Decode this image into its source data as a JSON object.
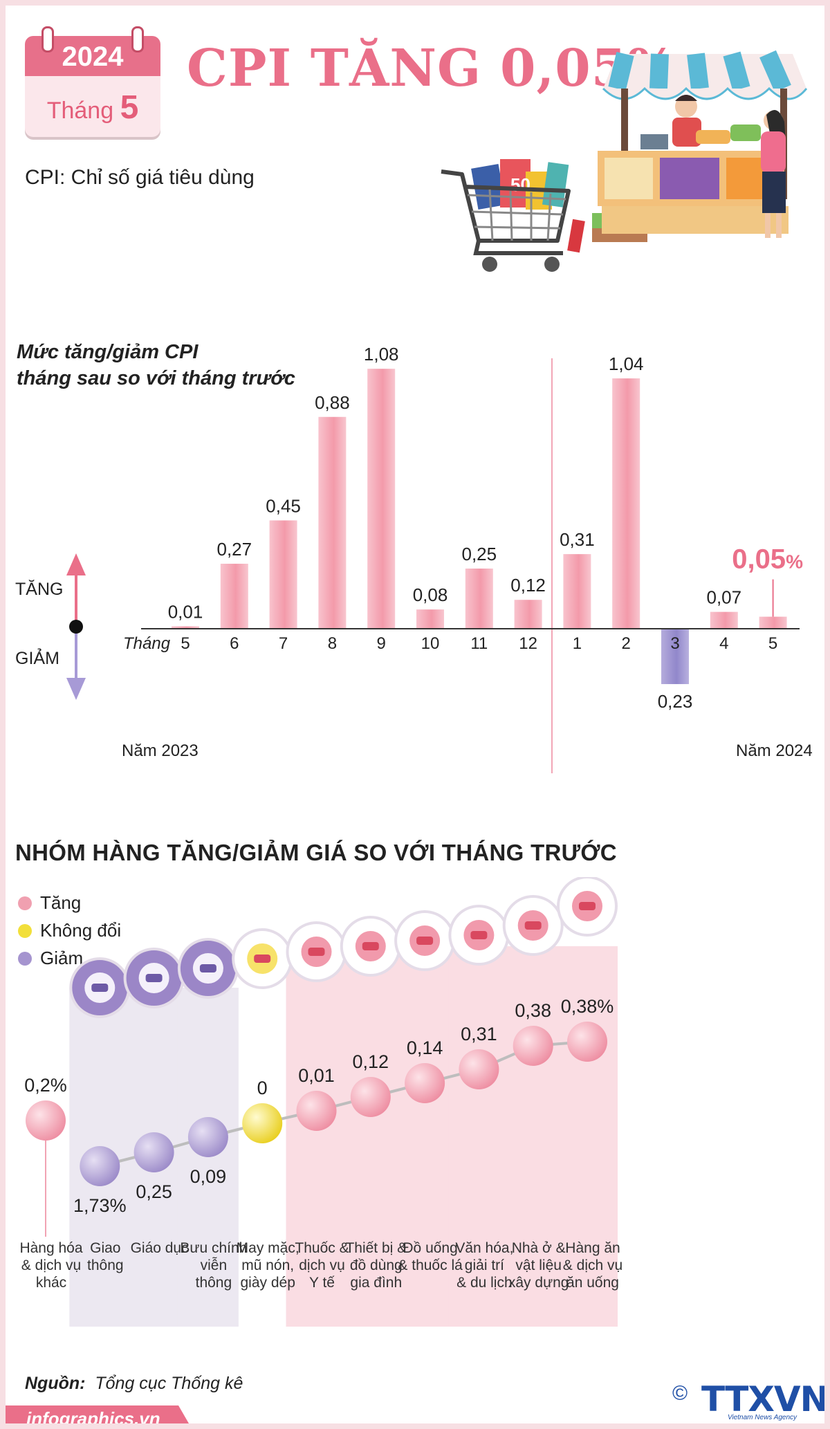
{
  "header": {
    "calendar_year": "2024",
    "calendar_month_word": "Tháng",
    "calendar_month_num": "5",
    "title": "CPI TĂNG 0,05%",
    "subtitle": "CPI: Chỉ số giá tiêu dùng"
  },
  "colors": {
    "pink": "#ea6f89",
    "bar_pink": "#f4a8b8",
    "bar_purple": "#a79ad6",
    "yellow": "#f2df3a",
    "purple_col": "#ece8f1",
    "pink_col": "#fadde3"
  },
  "chart_data": {
    "type": "bar",
    "title_line1": "Mức tăng/giảm CPI",
    "title_line2": "tháng sau so với tháng trước",
    "xlabel": "Tháng",
    "categories": [
      "5",
      "6",
      "7",
      "8",
      "9",
      "10",
      "11",
      "12",
      "1",
      "2",
      "3",
      "4",
      "5"
    ],
    "values": [
      0.01,
      0.27,
      0.45,
      0.88,
      1.08,
      0.08,
      0.25,
      0.12,
      0.31,
      1.04,
      -0.23,
      0.07,
      0.05
    ],
    "value_labels": [
      "0,01",
      "0,27",
      "0,45",
      "0,88",
      "1,08",
      "0,08",
      "0,25",
      "0,12",
      "0,31",
      "1,04",
      "0,23",
      "0,07",
      "0,05"
    ],
    "highlight_label": "0,05",
    "highlight_unit": "%",
    "years": [
      "Năm 2023",
      "Năm 2024"
    ],
    "up_label": "TĂNG",
    "down_label": "GIẢM"
  },
  "groups": {
    "title": "NHÓM HÀNG TĂNG/GIẢM GIÁ SO VỚI THÁNG TRƯỚC",
    "legend": [
      {
        "label": "Tăng",
        "color": "#f0a0b0"
      },
      {
        "label": "Không đổi",
        "color": "#f2df3a"
      },
      {
        "label": "Giảm",
        "color": "#a594cf"
      }
    ],
    "items": [
      {
        "name": "Hàng hóa & dịch vụ khác",
        "lines": [
          "Hàng hóa",
          "& dịch vụ",
          "khác"
        ],
        "value": "0,2%",
        "trend": "up",
        "icon": "none"
      },
      {
        "name": "Giao thông",
        "lines": [
          "Giao",
          "thông"
        ],
        "value": "1,73%",
        "trend": "down",
        "icon": "traffic-light-icon"
      },
      {
        "name": "Giáo dục",
        "lines": [
          "Giáo dục"
        ],
        "value": "0,25",
        "trend": "down",
        "icon": "graduation-cap-icon"
      },
      {
        "name": "Bưu chính viễn thông",
        "lines": [
          "Bưu chính",
          "viễn",
          "thông"
        ],
        "value": "0,09",
        "trend": "down",
        "icon": "antenna-tower-icon"
      },
      {
        "name": "May mặc, mũ nón, giày dép",
        "lines": [
          "May mặc,",
          "mũ nón,",
          "giày dép"
        ],
        "value": "0",
        "trend": "flat",
        "icon": "shirt-shoes-icon"
      },
      {
        "name": "Thuốc & dịch vụ Y tế",
        "lines": [
          "Thuốc &",
          "dịch vụ",
          "Y tế"
        ],
        "value": "0,01",
        "trend": "up",
        "icon": "pill-icon"
      },
      {
        "name": "Thiết bị & đồ dùng gia đình",
        "lines": [
          "Thiết bị &",
          "đồ dùng",
          "gia đình"
        ],
        "value": "0,12",
        "trend": "up",
        "icon": "washing-machine-icon"
      },
      {
        "name": "Đồ uống & thuốc lá",
        "lines": [
          "Đồ uống",
          "& thuốc lá"
        ],
        "value": "0,14",
        "trend": "up",
        "icon": "drink-cigarette-icon"
      },
      {
        "name": "Văn hóa, giải trí & du lịch",
        "lines": [
          "Văn hóa,",
          "giải trí",
          "& du lịch"
        ],
        "value": "0,31",
        "trend": "up",
        "icon": "film-reel-icon"
      },
      {
        "name": "Nhà ở & vật liệu xây dựng",
        "lines": [
          "Nhà ở &",
          "vật liệu",
          "xây dựng"
        ],
        "value": "0,38",
        "trend": "up",
        "icon": "bricks-helmet-icon"
      },
      {
        "name": "Hàng ăn & dịch vụ ăn uống",
        "lines": [
          "Hàng ăn",
          "& dịch vụ",
          "ăn uống"
        ],
        "value": "0,38%",
        "trend": "up",
        "icon": "meal-plate-icon"
      }
    ]
  },
  "footer": {
    "source_label": "Nguồn:",
    "source_text": "Tổng cục Thống kê",
    "site": "infographics.vn",
    "agency": "TTXVN",
    "agency_sub": "Vietnam News Agency",
    "copyright": "©"
  }
}
